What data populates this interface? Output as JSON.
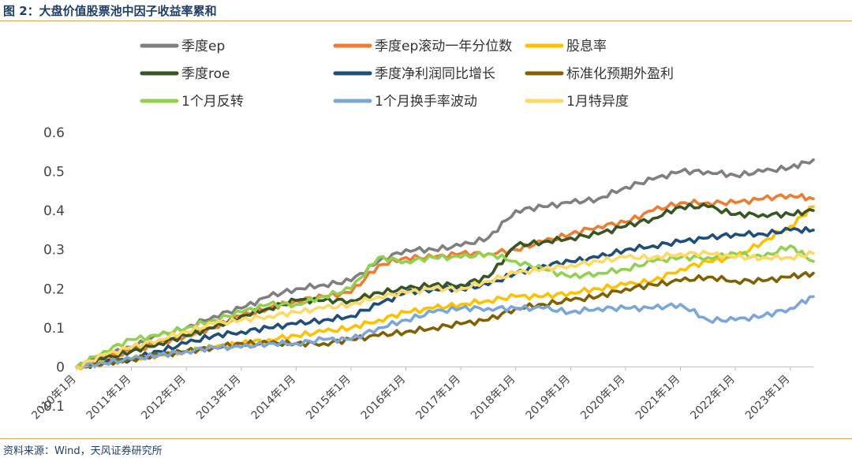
{
  "header": {
    "title": "图 2：大盘价值股票池中因子收益率累和"
  },
  "footer": {
    "source": "资料来源：Wind，天风证券研究所"
  },
  "chart_data": {
    "type": "line",
    "title": "",
    "xlabel": "",
    "ylabel": "",
    "ylim": [
      -0.1,
      0.6
    ],
    "yticks": [
      -0.1,
      0,
      0.1,
      0.2,
      0.3,
      0.4,
      0.5,
      0.6
    ],
    "ytick_labels": [
      "-0.1",
      "0",
      "0.1",
      "0.2",
      "0.3",
      "0.4",
      "0.5",
      "0.6"
    ],
    "x_range": [
      2010.0,
      2023.42
    ],
    "x_ticks": [
      2010,
      2011,
      2012,
      2013,
      2014,
      2015,
      2016,
      2017,
      2018,
      2019,
      2020,
      2021,
      2022,
      2023
    ],
    "x_tick_labels": [
      "2010年1月",
      "2011年1月",
      "2012年1月",
      "2013年1月",
      "2014年1月",
      "2015年1月",
      "2016年1月",
      "2017年1月",
      "2018年1月",
      "2019年1月",
      "2020年1月",
      "2021年1月",
      "2022年1月",
      "2023年1月"
    ],
    "grid": false,
    "legend_position": "top",
    "series": [
      {
        "name": "季度ep",
        "color": "#7f7f7f",
        "x": [
          2010,
          2010.5,
          2011,
          2011.5,
          2012,
          2012.5,
          2013,
          2013.5,
          2014,
          2014.5,
          2015,
          2015.5,
          2016,
          2016.5,
          2017,
          2017.5,
          2018,
          2018.5,
          2019,
          2019.5,
          2020,
          2020.5,
          2021,
          2021.5,
          2022,
          2022.5,
          2023,
          2023.42
        ],
        "values": [
          0,
          0.03,
          0.05,
          0.08,
          0.1,
          0.13,
          0.15,
          0.18,
          0.2,
          0.21,
          0.22,
          0.27,
          0.3,
          0.3,
          0.31,
          0.33,
          0.4,
          0.41,
          0.42,
          0.43,
          0.46,
          0.48,
          0.5,
          0.5,
          0.49,
          0.5,
          0.51,
          0.53
        ]
      },
      {
        "name": "季度ep滚动一年分位数",
        "color": "#ed7d31",
        "x": [
          2010,
          2010.5,
          2011,
          2011.5,
          2012,
          2012.5,
          2013,
          2013.5,
          2014,
          2014.5,
          2015,
          2015.5,
          2016,
          2016.5,
          2017,
          2017.5,
          2018,
          2018.5,
          2019,
          2019.5,
          2020,
          2020.5,
          2021,
          2021.5,
          2022,
          2022.5,
          2023,
          2023.42
        ],
        "values": [
          0,
          0.02,
          0.04,
          0.06,
          0.08,
          0.1,
          0.13,
          0.15,
          0.17,
          0.18,
          0.19,
          0.26,
          0.28,
          0.28,
          0.29,
          0.29,
          0.3,
          0.32,
          0.34,
          0.36,
          0.37,
          0.4,
          0.42,
          0.42,
          0.42,
          0.43,
          0.44,
          0.43
        ]
      },
      {
        "name": "股息率",
        "color": "#ffc000",
        "x": [
          2010,
          2010.5,
          2011,
          2011.5,
          2012,
          2012.5,
          2013,
          2013.5,
          2014,
          2014.5,
          2015,
          2015.5,
          2016,
          2016.5,
          2017,
          2017.5,
          2018,
          2018.5,
          2019,
          2019.5,
          2020,
          2020.5,
          2021,
          2021.5,
          2022,
          2022.5,
          2023,
          2023.42
        ],
        "values": [
          0,
          0.01,
          0.02,
          0.03,
          0.04,
          0.05,
          0.06,
          0.07,
          0.08,
          0.09,
          0.1,
          0.12,
          0.14,
          0.15,
          0.16,
          0.17,
          0.18,
          0.18,
          0.19,
          0.2,
          0.21,
          0.22,
          0.25,
          0.27,
          0.28,
          0.32,
          0.36,
          0.41
        ]
      },
      {
        "name": "季度roe",
        "color": "#375623",
        "x": [
          2010,
          2010.5,
          2011,
          2011.5,
          2012,
          2012.5,
          2013,
          2013.5,
          2014,
          2014.5,
          2015,
          2015.5,
          2016,
          2016.5,
          2017,
          2017.5,
          2018,
          2018.5,
          2019,
          2019.5,
          2020,
          2020.5,
          2021,
          2021.5,
          2022,
          2022.5,
          2023,
          2023.42
        ],
        "values": [
          0,
          0.02,
          0.04,
          0.06,
          0.08,
          0.1,
          0.13,
          0.15,
          0.17,
          0.17,
          0.17,
          0.19,
          0.2,
          0.21,
          0.21,
          0.23,
          0.31,
          0.32,
          0.33,
          0.34,
          0.36,
          0.38,
          0.41,
          0.41,
          0.39,
          0.39,
          0.39,
          0.4
        ]
      },
      {
        "name": "季度净利润同比增长",
        "color": "#1f4e79",
        "x": [
          2010,
          2010.5,
          2011,
          2011.5,
          2012,
          2012.5,
          2013,
          2013.5,
          2014,
          2014.5,
          2015,
          2015.5,
          2016,
          2016.5,
          2017,
          2017.5,
          2018,
          2018.5,
          2019,
          2019.5,
          2020,
          2020.5,
          2021,
          2021.5,
          2022,
          2022.5,
          2023,
          2023.42
        ],
        "values": [
          0,
          0.01,
          0.02,
          0.04,
          0.06,
          0.08,
          0.09,
          0.1,
          0.11,
          0.12,
          0.13,
          0.16,
          0.19,
          0.2,
          0.2,
          0.21,
          0.24,
          0.26,
          0.27,
          0.28,
          0.3,
          0.31,
          0.32,
          0.33,
          0.34,
          0.34,
          0.35,
          0.35
        ]
      },
      {
        "name": "标准化预期外盈利",
        "color": "#806000",
        "x": [
          2010,
          2010.5,
          2011,
          2011.5,
          2012,
          2012.5,
          2013,
          2013.5,
          2014,
          2014.5,
          2015,
          2015.5,
          2016,
          2016.5,
          2017,
          2017.5,
          2018,
          2018.5,
          2019,
          2019.5,
          2020,
          2020.5,
          2021,
          2021.5,
          2022,
          2022.5,
          2023,
          2023.42
        ],
        "values": [
          0,
          0.01,
          0.02,
          0.03,
          0.04,
          0.05,
          0.06,
          0.06,
          0.06,
          0.06,
          0.07,
          0.08,
          0.09,
          0.1,
          0.11,
          0.12,
          0.15,
          0.16,
          0.17,
          0.18,
          0.2,
          0.21,
          0.22,
          0.23,
          0.22,
          0.22,
          0.23,
          0.24
        ]
      },
      {
        "name": "1个月反转",
        "color": "#92d050",
        "x": [
          2010,
          2010.5,
          2011,
          2011.5,
          2012,
          2012.5,
          2013,
          2013.5,
          2014,
          2014.5,
          2015,
          2015.5,
          2016,
          2016.5,
          2017,
          2017.5,
          2018,
          2018.5,
          2019,
          2019.5,
          2020,
          2020.5,
          2021,
          2021.5,
          2022,
          2022.5,
          2023,
          2023.42
        ],
        "values": [
          0,
          0.04,
          0.07,
          0.08,
          0.1,
          0.12,
          0.14,
          0.16,
          0.16,
          0.18,
          0.2,
          0.28,
          0.27,
          0.28,
          0.28,
          0.29,
          0.27,
          0.25,
          0.23,
          0.24,
          0.25,
          0.27,
          0.28,
          0.28,
          0.29,
          0.28,
          0.31,
          0.27
        ]
      },
      {
        "name": "1个月换手率波动",
        "color": "#7ba6d6",
        "x": [
          2010,
          2010.5,
          2011,
          2011.5,
          2012,
          2012.5,
          2013,
          2013.5,
          2014,
          2014.5,
          2015,
          2015.5,
          2016,
          2016.5,
          2017,
          2017.5,
          2018,
          2018.5,
          2019,
          2019.5,
          2020,
          2020.5,
          2021,
          2021.5,
          2022,
          2022.5,
          2023,
          2023.42
        ],
        "values": [
          0,
          0.01,
          0.02,
          0.03,
          0.04,
          0.05,
          0.05,
          0.06,
          0.06,
          0.07,
          0.07,
          0.1,
          0.12,
          0.14,
          0.15,
          0.15,
          0.15,
          0.15,
          0.14,
          0.15,
          0.15,
          0.15,
          0.16,
          0.12,
          0.12,
          0.13,
          0.15,
          0.18
        ]
      },
      {
        "name": "1月特异度",
        "color": "#ffd966",
        "x": [
          2010,
          2010.5,
          2011,
          2011.5,
          2012,
          2012.5,
          2013,
          2013.5,
          2014,
          2014.5,
          2015,
          2015.5,
          2016,
          2016.5,
          2017,
          2017.5,
          2018,
          2018.5,
          2019,
          2019.5,
          2020,
          2020.5,
          2021,
          2021.5,
          2022,
          2022.5,
          2023,
          2023.42
        ],
        "values": [
          0,
          0.03,
          0.05,
          0.07,
          0.09,
          0.11,
          0.12,
          0.13,
          0.14,
          0.15,
          0.16,
          0.18,
          0.19,
          0.2,
          0.2,
          0.22,
          0.24,
          0.25,
          0.26,
          0.27,
          0.28,
          0.28,
          0.29,
          0.29,
          0.28,
          0.28,
          0.28,
          0.29
        ]
      }
    ]
  }
}
